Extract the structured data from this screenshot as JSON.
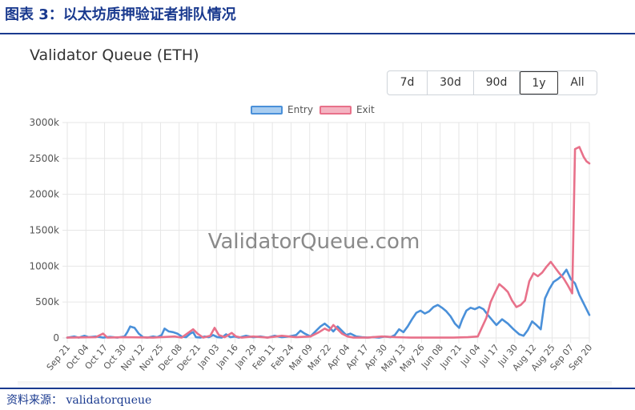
{
  "figure": {
    "title": "图表 3：以太坊质押验证者排队情况",
    "source": "资料来源：    validatorqueue"
  },
  "card": {
    "title": "Validator Queue (ETH)",
    "ranges": [
      "7d",
      "30d",
      "90d",
      "1y",
      "All"
    ],
    "active_range": "1y",
    "watermark": "ValidatorQueue.com"
  },
  "colors": {
    "entry": "#4a90d9",
    "entry_fill": "#a9cdf0",
    "exit": "#e8718a",
    "exit_fill": "#f4b4c2",
    "grid": "#e6e6e6",
    "heading": "#1a3a8f"
  },
  "chart_data": {
    "type": "line",
    "x_tick_labels": [
      "Sep 21",
      "Oct 04",
      "Oct 17",
      "Oct 30",
      "Nov 12",
      "Nov 25",
      "Dec 08",
      "Dec 21",
      "Jan 03",
      "Jan 16",
      "Jan 29",
      "Feb 11",
      "Feb 24",
      "Mar 09",
      "Mar 22",
      "Apr 04",
      "Apr 17",
      "Apr 30",
      "May 13",
      "May 26",
      "Jun 08",
      "Jun 21",
      "Jul 04",
      "Jul 17",
      "Jul 30",
      "Aug 12",
      "Aug 25",
      "Sep 07",
      "Sep 20"
    ],
    "y_tick_labels": [
      "0",
      "500k",
      "1000k",
      "1500k",
      "2000k",
      "2500k",
      "3000k"
    ],
    "ylim": [
      0,
      3000000
    ],
    "x_unit": "days since Sep 21",
    "xlim": [
      0,
      365
    ],
    "legend_position": "top",
    "grid": true,
    "series": [
      {
        "name": "Entry",
        "points": [
          [
            0,
            5000
          ],
          [
            5,
            20000
          ],
          [
            8,
            5000
          ],
          [
            12,
            30000
          ],
          [
            15,
            10000
          ],
          [
            20,
            20000
          ],
          [
            25,
            5000
          ],
          [
            30,
            15000
          ],
          [
            35,
            5000
          ],
          [
            40,
            20000
          ],
          [
            42,
            80000
          ],
          [
            44,
            160000
          ],
          [
            47,
            140000
          ],
          [
            50,
            60000
          ],
          [
            53,
            10000
          ],
          [
            56,
            5000
          ],
          [
            60,
            20000
          ],
          [
            63,
            10000
          ],
          [
            66,
            40000
          ],
          [
            68,
            130000
          ],
          [
            71,
            90000
          ],
          [
            74,
            80000
          ],
          [
            77,
            60000
          ],
          [
            80,
            20000
          ],
          [
            83,
            10000
          ],
          [
            86,
            60000
          ],
          [
            88,
            80000
          ],
          [
            90,
            10000
          ],
          [
            93,
            5000
          ],
          [
            96,
            20000
          ],
          [
            99,
            10000
          ],
          [
            102,
            40000
          ],
          [
            105,
            10000
          ],
          [
            108,
            5000
          ],
          [
            111,
            50000
          ],
          [
            114,
            10000
          ],
          [
            117,
            20000
          ],
          [
            120,
            5000
          ],
          [
            125,
            30000
          ],
          [
            130,
            10000
          ],
          [
            135,
            20000
          ],
          [
            140,
            5000
          ],
          [
            145,
            30000
          ],
          [
            150,
            10000
          ],
          [
            155,
            20000
          ],
          [
            160,
            40000
          ],
          [
            163,
            100000
          ],
          [
            166,
            60000
          ],
          [
            170,
            20000
          ],
          [
            174,
            100000
          ],
          [
            177,
            160000
          ],
          [
            180,
            200000
          ],
          [
            183,
            150000
          ],
          [
            186,
            90000
          ],
          [
            189,
            160000
          ],
          [
            192,
            100000
          ],
          [
            195,
            40000
          ],
          [
            198,
            60000
          ],
          [
            202,
            20000
          ],
          [
            206,
            10000
          ],
          [
            210,
            5000
          ],
          [
            214,
            10000
          ],
          [
            218,
            5000
          ],
          [
            222,
            20000
          ],
          [
            226,
            10000
          ],
          [
            229,
            40000
          ],
          [
            232,
            120000
          ],
          [
            235,
            80000
          ],
          [
            238,
            160000
          ],
          [
            241,
            260000
          ],
          [
            244,
            350000
          ],
          [
            247,
            380000
          ],
          [
            250,
            340000
          ],
          [
            253,
            370000
          ],
          [
            256,
            430000
          ],
          [
            259,
            460000
          ],
          [
            262,
            420000
          ],
          [
            265,
            370000
          ],
          [
            268,
            300000
          ],
          [
            271,
            200000
          ],
          [
            274,
            140000
          ],
          [
            276,
            250000
          ],
          [
            279,
            380000
          ],
          [
            282,
            420000
          ],
          [
            285,
            400000
          ],
          [
            288,
            430000
          ],
          [
            291,
            400000
          ],
          [
            294,
            320000
          ],
          [
            297,
            250000
          ],
          [
            300,
            180000
          ],
          [
            304,
            260000
          ],
          [
            308,
            200000
          ],
          [
            312,
            120000
          ],
          [
            316,
            50000
          ],
          [
            319,
            30000
          ],
          [
            322,
            110000
          ],
          [
            325,
            230000
          ],
          [
            328,
            180000
          ],
          [
            331,
            120000
          ],
          [
            334,
            550000
          ],
          [
            337,
            680000
          ],
          [
            340,
            780000
          ],
          [
            343,
            820000
          ],
          [
            346,
            870000
          ],
          [
            349,
            950000
          ],
          [
            352,
            820000
          ],
          [
            355,
            760000
          ],
          [
            358,
            600000
          ],
          [
            361,
            480000
          ],
          [
            365,
            320000
          ]
        ]
      },
      {
        "name": "Exit",
        "points": [
          [
            0,
            5000
          ],
          [
            20,
            10000
          ],
          [
            25,
            60000
          ],
          [
            28,
            5000
          ],
          [
            40,
            10000
          ],
          [
            60,
            5000
          ],
          [
            75,
            20000
          ],
          [
            80,
            5000
          ],
          [
            88,
            120000
          ],
          [
            91,
            60000
          ],
          [
            95,
            5000
          ],
          [
            100,
            30000
          ],
          [
            103,
            140000
          ],
          [
            106,
            40000
          ],
          [
            110,
            10000
          ],
          [
            115,
            70000
          ],
          [
            118,
            20000
          ],
          [
            122,
            5000
          ],
          [
            130,
            20000
          ],
          [
            140,
            5000
          ],
          [
            150,
            30000
          ],
          [
            160,
            10000
          ],
          [
            170,
            20000
          ],
          [
            176,
            80000
          ],
          [
            180,
            130000
          ],
          [
            183,
            100000
          ],
          [
            186,
            180000
          ],
          [
            189,
            120000
          ],
          [
            192,
            60000
          ],
          [
            196,
            20000
          ],
          [
            200,
            5000
          ],
          [
            210,
            5000
          ],
          [
            220,
            20000
          ],
          [
            230,
            10000
          ],
          [
            240,
            5000
          ],
          [
            250,
            5000
          ],
          [
            260,
            5000
          ],
          [
            270,
            5000
          ],
          [
            280,
            10000
          ],
          [
            287,
            20000
          ],
          [
            290,
            150000
          ],
          [
            293,
            280000
          ],
          [
            296,
            500000
          ],
          [
            299,
            630000
          ],
          [
            302,
            750000
          ],
          [
            305,
            700000
          ],
          [
            308,
            640000
          ],
          [
            311,
            520000
          ],
          [
            314,
            430000
          ],
          [
            317,
            460000
          ],
          [
            320,
            520000
          ],
          [
            323,
            790000
          ],
          [
            326,
            900000
          ],
          [
            329,
            860000
          ],
          [
            332,
            910000
          ],
          [
            335,
            990000
          ],
          [
            338,
            1060000
          ],
          [
            341,
            980000
          ],
          [
            344,
            900000
          ],
          [
            347,
            830000
          ],
          [
            350,
            730000
          ],
          [
            353,
            620000
          ],
          [
            355,
            2630000
          ],
          [
            358,
            2660000
          ],
          [
            361,
            2520000
          ],
          [
            363,
            2460000
          ],
          [
            365,
            2430000
          ]
        ]
      }
    ]
  }
}
